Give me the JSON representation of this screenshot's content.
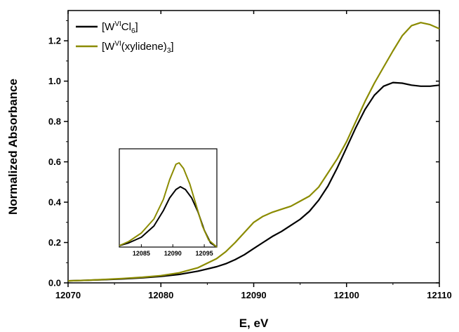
{
  "chart_data": [
    {
      "type": "line",
      "title": "",
      "xlabel": "E, eV",
      "ylabel": "Normalized Absorbance",
      "xlim": [
        12070,
        12110
      ],
      "ylim": [
        0,
        1.35
      ],
      "x_ticks": [
        "12070",
        "12080",
        "12090",
        "12100",
        "12110"
      ],
      "y_ticks": [
        "0.0",
        "0.2",
        "0.4",
        "0.6",
        "0.8",
        "1.0",
        "1.2"
      ],
      "legend_position": "top-left",
      "grid": false,
      "series": [
        {
          "name": "[W^VI Cl_6]",
          "legend": {
            "base": "[W",
            "sup": "VI",
            "mid": "Cl",
            "sub": "6",
            "end": "]"
          },
          "color": "#000000",
          "points": [
            [
              12070,
              0.01
            ],
            [
              12072,
              0.013
            ],
            [
              12074,
              0.016
            ],
            [
              12076,
              0.02
            ],
            [
              12078,
              0.025
            ],
            [
              12080,
              0.032
            ],
            [
              12082,
              0.042
            ],
            [
              12084,
              0.058
            ],
            [
              12086,
              0.08
            ],
            [
              12087,
              0.095
            ],
            [
              12088,
              0.115
            ],
            [
              12089,
              0.14
            ],
            [
              12090,
              0.17
            ],
            [
              12091,
              0.2
            ],
            [
              12092,
              0.23
            ],
            [
              12093,
              0.255
            ],
            [
              12094,
              0.285
            ],
            [
              12095,
              0.315
            ],
            [
              12096,
              0.355
            ],
            [
              12097,
              0.41
            ],
            [
              12098,
              0.48
            ],
            [
              12099,
              0.57
            ],
            [
              12100,
              0.67
            ],
            [
              12101,
              0.77
            ],
            [
              12102,
              0.86
            ],
            [
              12103,
              0.93
            ],
            [
              12104,
              0.975
            ],
            [
              12105,
              0.993
            ],
            [
              12106,
              0.99
            ],
            [
              12107,
              0.98
            ],
            [
              12108,
              0.975
            ],
            [
              12109,
              0.975
            ],
            [
              12110,
              0.98
            ]
          ]
        },
        {
          "name": "[W^VI(xylidene)_3]",
          "legend": {
            "base": "[W",
            "sup": "VI",
            "mid": "(xylidene)",
            "sub": "3",
            "end": "]"
          },
          "color": "#8b8b00",
          "points": [
            [
              12070,
              0.01
            ],
            [
              12072,
              0.013
            ],
            [
              12074,
              0.017
            ],
            [
              12076,
              0.022
            ],
            [
              12078,
              0.028
            ],
            [
              12080,
              0.036
            ],
            [
              12082,
              0.05
            ],
            [
              12084,
              0.075
            ],
            [
              12086,
              0.12
            ],
            [
              12087,
              0.155
            ],
            [
              12088,
              0.2
            ],
            [
              12089,
              0.25
            ],
            [
              12090,
              0.3
            ],
            [
              12091,
              0.33
            ],
            [
              12092,
              0.35
            ],
            [
              12093,
              0.365
            ],
            [
              12094,
              0.38
            ],
            [
              12095,
              0.405
            ],
            [
              12096,
              0.43
            ],
            [
              12097,
              0.475
            ],
            [
              12098,
              0.545
            ],
            [
              12099,
              0.615
            ],
            [
              12100,
              0.7
            ],
            [
              12101,
              0.8
            ],
            [
              12102,
              0.9
            ],
            [
              12103,
              0.99
            ],
            [
              12104,
              1.07
            ],
            [
              12105,
              1.15
            ],
            [
              12106,
              1.225
            ],
            [
              12107,
              1.275
            ],
            [
              12108,
              1.29
            ],
            [
              12109,
              1.28
            ],
            [
              12110,
              1.26
            ]
          ]
        }
      ]
    },
    {
      "type": "line",
      "title": "",
      "xlabel": "",
      "ylabel": "",
      "xlim": [
        12081.5,
        12097
      ],
      "ylim": [
        0,
        0.7
      ],
      "x_ticks": [
        "12085",
        "12090",
        "12095"
      ],
      "legend_position": "none",
      "series": [
        {
          "color": "#000000",
          "points": [
            [
              12081.5,
              0.01
            ],
            [
              12083,
              0.03
            ],
            [
              12085,
              0.07
            ],
            [
              12087,
              0.15
            ],
            [
              12088.5,
              0.26
            ],
            [
              12089.5,
              0.35
            ],
            [
              12090.5,
              0.41
            ],
            [
              12091.2,
              0.43
            ],
            [
              12092,
              0.41
            ],
            [
              12093,
              0.35
            ],
            [
              12094,
              0.25
            ],
            [
              12095,
              0.12
            ],
            [
              12096,
              0.03
            ],
            [
              12097,
              0.0
            ]
          ]
        },
        {
          "color": "#8b8b00",
          "points": [
            [
              12081.5,
              0.01
            ],
            [
              12083,
              0.04
            ],
            [
              12085,
              0.1
            ],
            [
              12087,
              0.2
            ],
            [
              12088.5,
              0.34
            ],
            [
              12089.5,
              0.48
            ],
            [
              12090.5,
              0.59
            ],
            [
              12091,
              0.6
            ],
            [
              12091.7,
              0.56
            ],
            [
              12092.7,
              0.45
            ],
            [
              12093.7,
              0.3
            ],
            [
              12094.7,
              0.15
            ],
            [
              12095.7,
              0.05
            ],
            [
              12097,
              0.0
            ]
          ]
        }
      ]
    }
  ]
}
